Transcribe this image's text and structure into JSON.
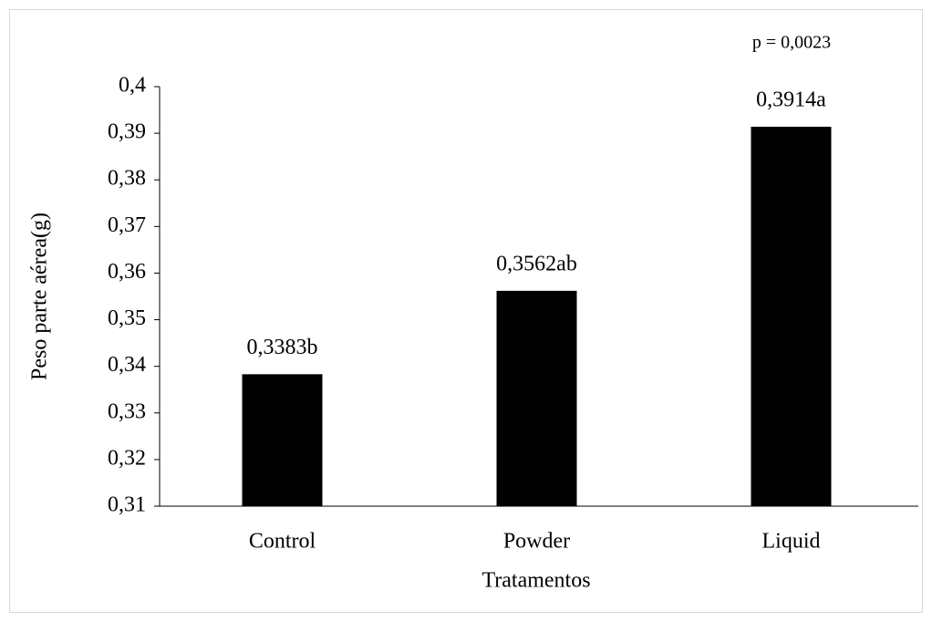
{
  "chart_data": {
    "type": "bar",
    "annotation": "p = 0,0023",
    "xlabel": "Tratamentos",
    "ylabel": "Peso parte aérea(g)",
    "categories": [
      "Control",
      "Powder",
      "Liquid"
    ],
    "values": [
      0.3383,
      0.3562,
      0.3914
    ],
    "value_labels": [
      "0,3383b",
      "0,3562ab",
      "0,3914a"
    ],
    "color": "#000000",
    "ylim": [
      0.31,
      0.4
    ],
    "yticks": [
      {
        "value": 0.31,
        "label": "0,31"
      },
      {
        "value": 0.32,
        "label": "0,32"
      },
      {
        "value": 0.33,
        "label": "0,33"
      },
      {
        "value": 0.34,
        "label": "0,34"
      },
      {
        "value": 0.35,
        "label": "0,35"
      },
      {
        "value": 0.36,
        "label": "0,36"
      },
      {
        "value": 0.37,
        "label": "0,37"
      },
      {
        "value": 0.38,
        "label": "0,38"
      },
      {
        "value": 0.39,
        "label": "0,39"
      },
      {
        "value": 0.4,
        "label": "0,4"
      }
    ],
    "grid": false
  }
}
